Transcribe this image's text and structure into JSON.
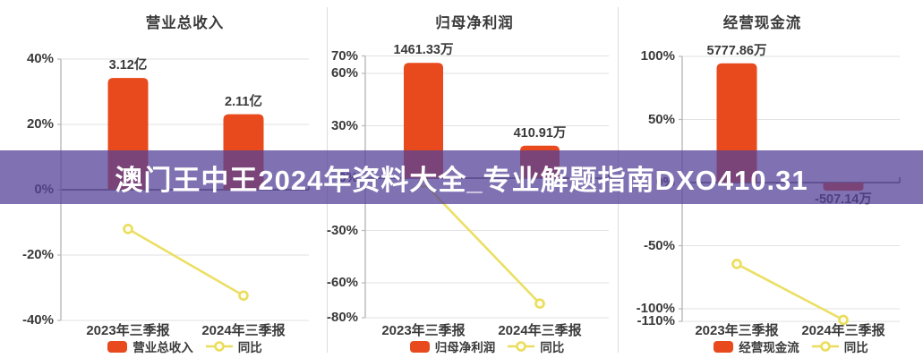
{
  "banner": {
    "text": "澳门王中王2024年资料大全_专业解题指南DXO410.31"
  },
  "colors": {
    "bar": "#e8491d",
    "line": "#eadd5c",
    "marker_fill": "#fffdf0",
    "grid": "#e2e2e2",
    "zero_line": "#50505a",
    "axis": "#b8b8b8",
    "text": "#3a3a3a",
    "separator": "#dcdcdc",
    "banner_bg": "rgba(86,67,152,0.75)",
    "banner_text": "#ffffff",
    "background": "#ffffff"
  },
  "chart_data": [
    {
      "type": "bar+line",
      "title": "营业总收入",
      "categories": [
        "2023年三季报",
        "2024年三季报"
      ],
      "y_unit": "%",
      "y_ticks": [
        40,
        20,
        0,
        -20,
        -40
      ],
      "bar_series": {
        "name": "营业总收入",
        "value_labels": [
          "3.12亿",
          "2.11亿"
        ],
        "plotted_pct": [
          34.2,
          23.1
        ]
      },
      "line_series": {
        "name": "同比",
        "values_pct": [
          -12,
          -32.4
        ]
      },
      "legend": [
        "营业总收入",
        "同比"
      ],
      "legend_position": "bottom"
    },
    {
      "type": "bar+line",
      "title": "归母净利润",
      "categories": [
        "2023年三季报",
        "2024年三季报"
      ],
      "y_unit": "%",
      "y_ticks": [
        70,
        60,
        30,
        0,
        -30,
        -60,
        -80
      ],
      "bar_series": {
        "name": "归母净利润",
        "value_labels": [
          "1461.33万",
          "410.91万"
        ],
        "plotted_pct": [
          66,
          18.6
        ]
      },
      "line_series": {
        "name": "同比",
        "values_pct": [
          -2.6,
          -71.9
        ]
      },
      "legend": [
        "归母净利润",
        "同比"
      ],
      "legend_position": "bottom"
    },
    {
      "type": "bar+line",
      "title": "经营现金流",
      "categories": [
        "2023年三季报",
        "2024年三季报"
      ],
      "y_unit": "%",
      "y_ticks": [
        100,
        50,
        0,
        -50,
        -100,
        -110
      ],
      "bar_series": {
        "name": "经营现金流",
        "value_labels": [
          "5777.86万",
          "-507.14万"
        ],
        "plotted_pct": [
          94.5,
          -6.5
        ]
      },
      "line_series": {
        "name": "同比",
        "values_pct": [
          -64.5,
          -108.8
        ]
      },
      "legend": [
        "经营现金流",
        "同比"
      ],
      "legend_position": "bottom"
    }
  ]
}
